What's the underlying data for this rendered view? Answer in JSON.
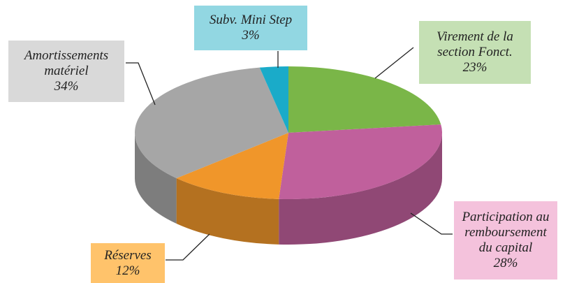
{
  "chart_data": {
    "type": "pie3d",
    "categories": [
      "Virement de la section Fonct.",
      "Participation au remboursement du capital",
      "Réserves",
      "Amortissements matériel",
      "Subv. Mini Step"
    ],
    "values": [
      23,
      28,
      12,
      34,
      3
    ],
    "value_labels": [
      "23%",
      "28%",
      "12%",
      "34%",
      "3%"
    ],
    "colors": [
      "#7ab648",
      "#c0609c",
      "#f0962a",
      "#a6a6a6",
      "#1aabc9"
    ],
    "label_colors": [
      "#c5e0b4",
      "#f4c2dc",
      "#ffc36b",
      "#d9d9d9",
      "#92d7e2"
    ]
  }
}
